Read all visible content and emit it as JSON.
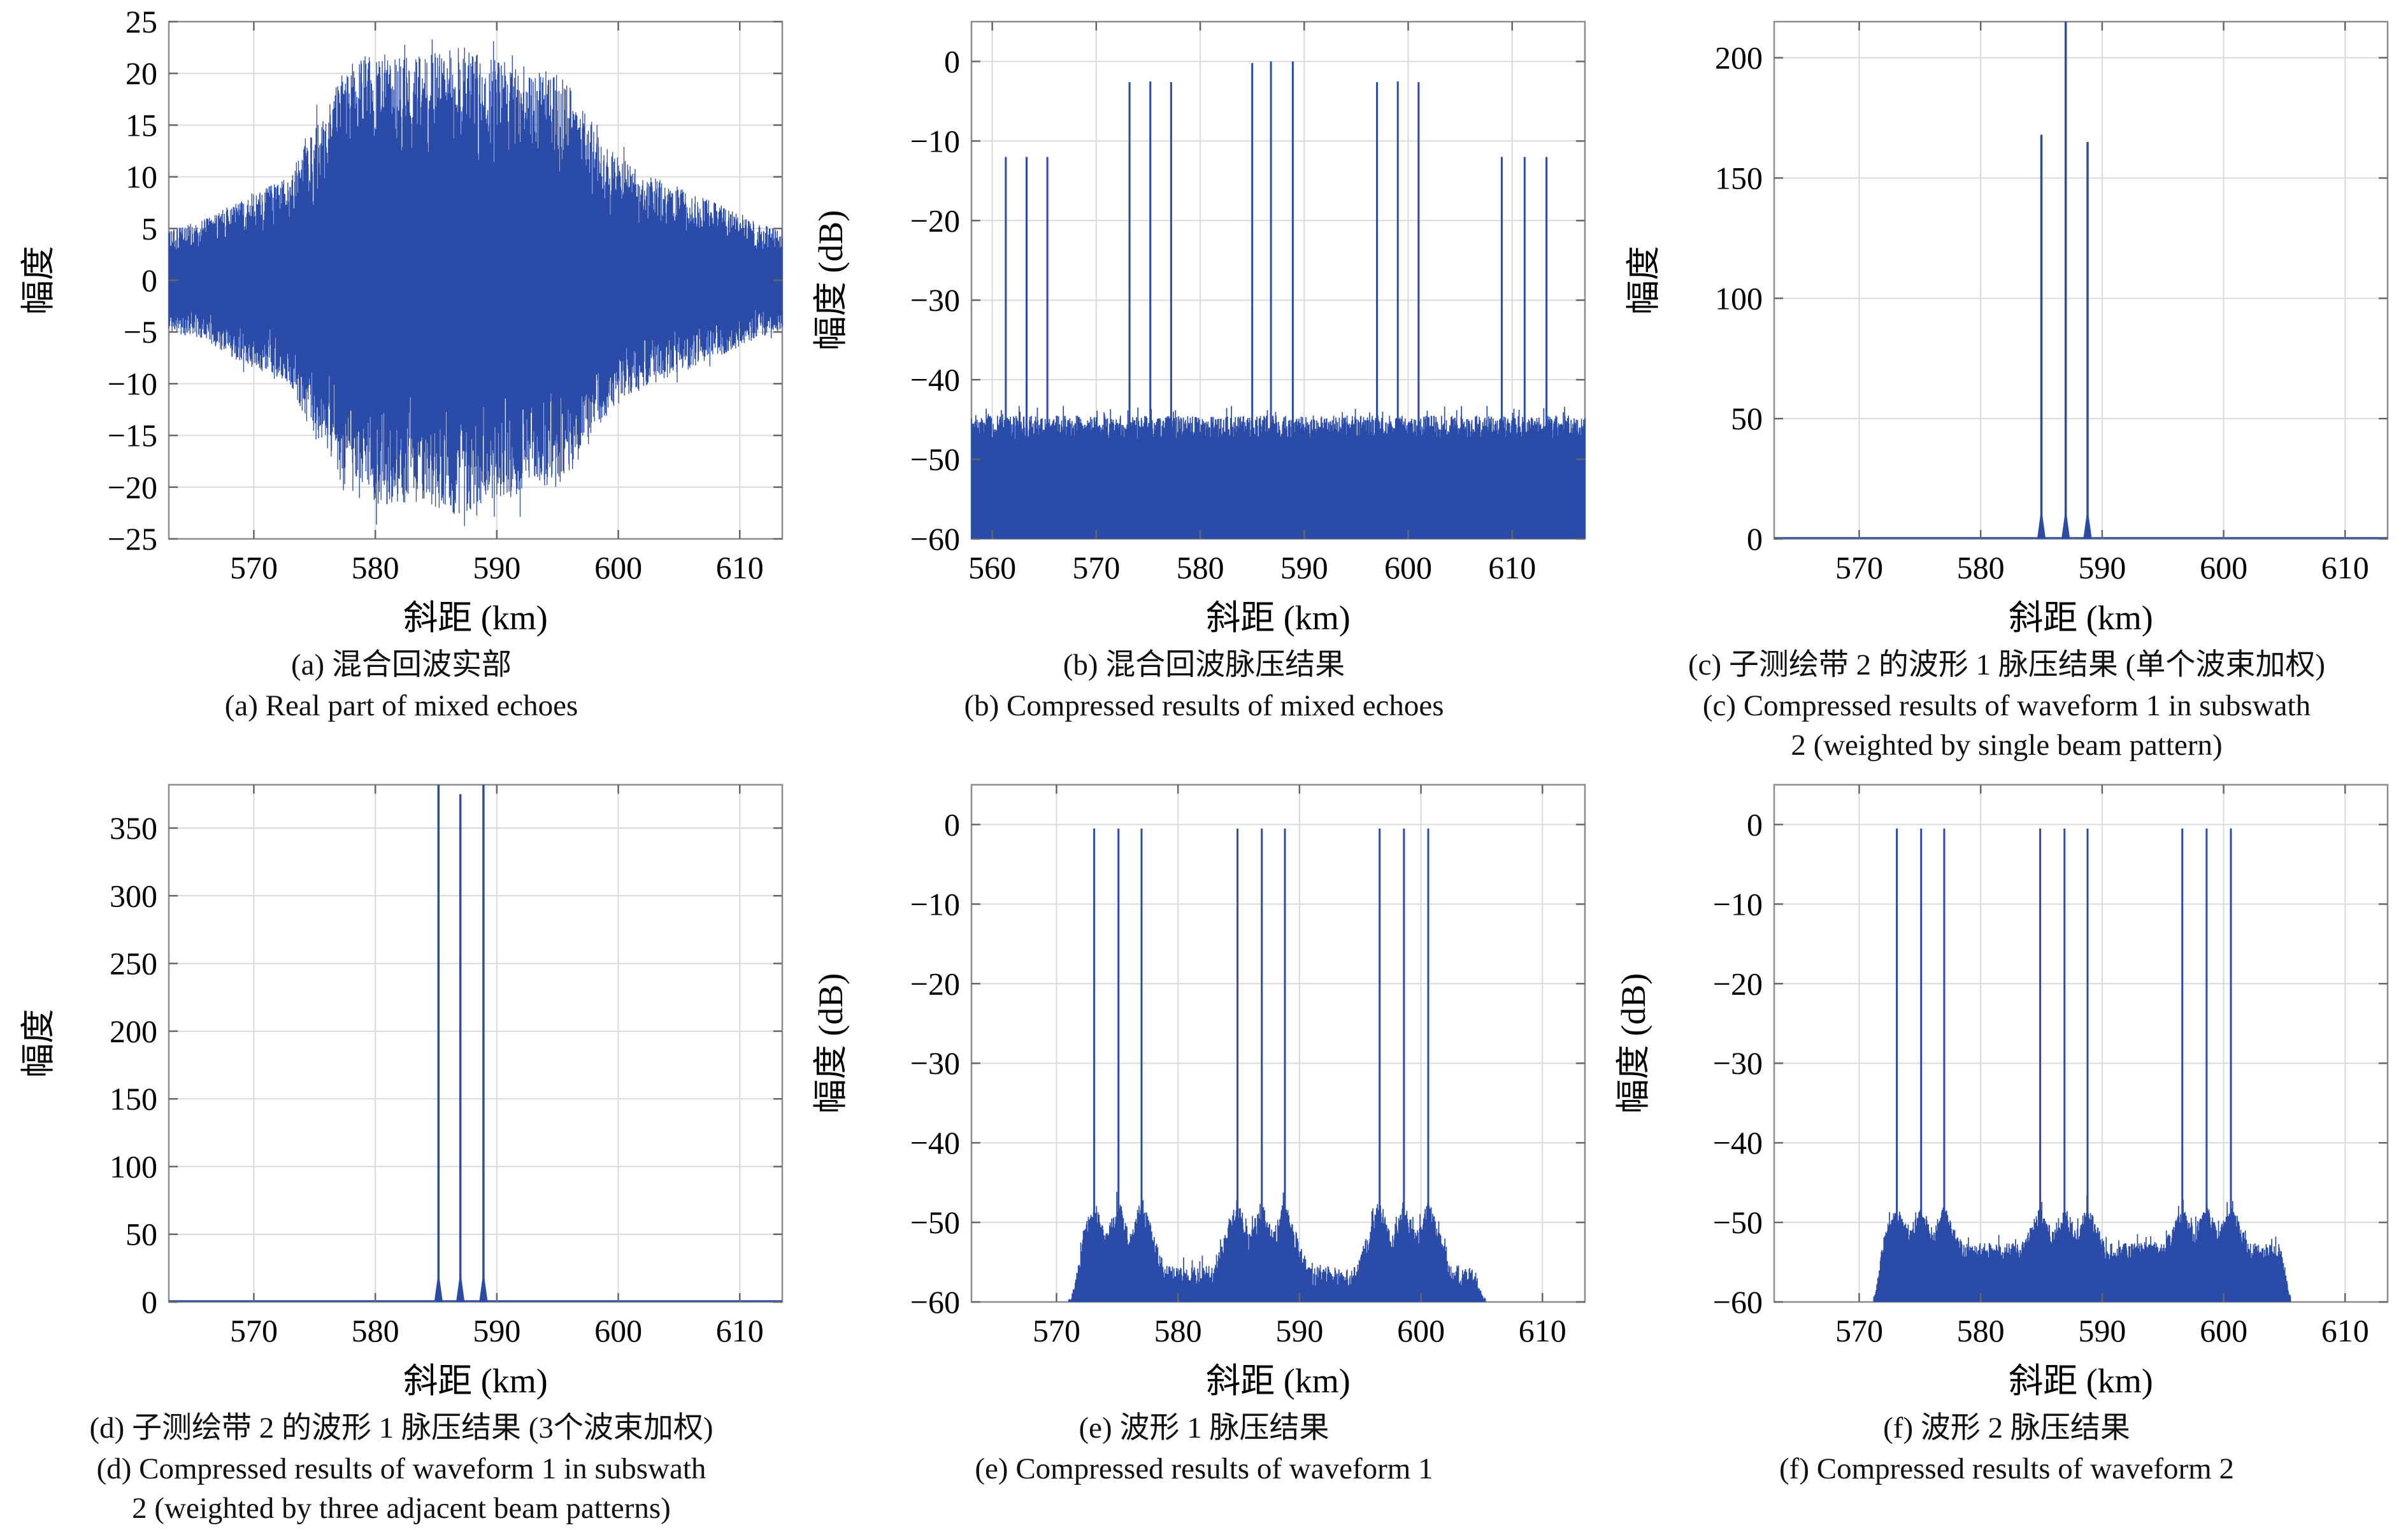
{
  "figure": {
    "line_color": "#2a4ba8",
    "grid_color": "#d9d9d9",
    "axis_color": "#8c8c8c",
    "tick_color": "#666666",
    "text_color": "#000000",
    "background": "#ffffff"
  },
  "chart_data": [
    {
      "id": "a",
      "type": "line",
      "kind": "noise",
      "xlabel": "斜距 (km)",
      "ylabel": "幅度",
      "xlim": [
        563,
        613.5
      ],
      "ylim": [
        -25,
        25
      ],
      "xticks": [
        570,
        580,
        590,
        600,
        610
      ],
      "yticks": [
        -25,
        -20,
        -15,
        -10,
        -5,
        0,
        5,
        10,
        15,
        20,
        25
      ],
      "grid": true,
      "envelope": [
        [
          563,
          5
        ],
        [
          565,
          5.5
        ],
        [
          567,
          6.5
        ],
        [
          569,
          8
        ],
        [
          571,
          9
        ],
        [
          573,
          10
        ],
        [
          574.5,
          14.5
        ],
        [
          576,
          16
        ],
        [
          577,
          20
        ],
        [
          578.5,
          21.5
        ],
        [
          580,
          22
        ],
        [
          583,
          21.5
        ],
        [
          585,
          22
        ],
        [
          587,
          23
        ],
        [
          589,
          21.5
        ],
        [
          591,
          21
        ],
        [
          593,
          20.5
        ],
        [
          595,
          20
        ],
        [
          596.5,
          18
        ],
        [
          598,
          14.5
        ],
        [
          600,
          12
        ],
        [
          602,
          10.5
        ],
        [
          604,
          9.5
        ],
        [
          606,
          8.5
        ],
        [
          608,
          7.5
        ],
        [
          610,
          6.5
        ],
        [
          611.5,
          5.5
        ],
        [
          613.5,
          5
        ]
      ],
      "caption_cn": "(a) 混合回波实部",
      "caption_en": "(a) Real part of mixed echoes"
    },
    {
      "id": "b",
      "type": "line",
      "kind": "dbnoise",
      "xlabel": "斜距 (km)",
      "ylabel": "幅度 (dB)",
      "xlim": [
        558,
        617
      ],
      "ylim": [
        -60,
        5
      ],
      "xticks": [
        560,
        570,
        580,
        590,
        600,
        610
      ],
      "yticks": [
        -60,
        -50,
        -40,
        -30,
        -20,
        -10,
        0
      ],
      "grid": true,
      "noise": {
        "x0": 558,
        "x1": 617,
        "base": -47.5,
        "jitter": 3.0,
        "ped_h": 0,
        "ped_w": 1,
        "taper": 0
      },
      "spike_ped": {
        "w": 0.45,
        "apex": -41.5
      },
      "peaks": [
        [
          561.3,
          -12
        ],
        [
          563.3,
          -12
        ],
        [
          565.3,
          -12
        ],
        [
          573.2,
          -2.6
        ],
        [
          575.2,
          -2.5
        ],
        [
          577.2,
          -2.6
        ],
        [
          585.0,
          -0.2
        ],
        [
          586.8,
          0
        ],
        [
          588.9,
          0
        ],
        [
          597.0,
          -2.6
        ],
        [
          599.0,
          -2.5
        ],
        [
          601.0,
          -2.6
        ],
        [
          609.0,
          -12
        ],
        [
          611.2,
          -12
        ],
        [
          613.3,
          -12
        ]
      ],
      "caption_cn": "(b) 混合回波脉压结果",
      "caption_en": "(b) Compressed results of mixed echoes"
    },
    {
      "id": "c",
      "type": "line",
      "kind": "spikes",
      "xlabel": "斜距 (km)",
      "ylabel": "幅度",
      "xlim": [
        563,
        613.5
      ],
      "ylim": [
        0,
        215
      ],
      "xticks": [
        570,
        580,
        590,
        600,
        610
      ],
      "yticks": [
        0,
        50,
        100,
        150,
        200
      ],
      "grid": true,
      "peaks": [
        [
          585.0,
          168
        ],
        [
          587.0,
          260
        ],
        [
          588.8,
          165
        ]
      ],
      "caption_cn": "(c) 子测绘带 2 的波形 1 脉压结果 (单个波束加权)",
      "caption_en": [
        "(c) Compressed results of waveform 1 in subswath",
        "2 (weighted by single beam pattern)"
      ]
    },
    {
      "id": "d",
      "type": "line",
      "kind": "spikes",
      "xlabel": "斜距 (km)",
      "ylabel": "幅度",
      "xlim": [
        563,
        613.5
      ],
      "ylim": [
        0,
        382
      ],
      "xticks": [
        570,
        580,
        590,
        600,
        610
      ],
      "yticks": [
        0,
        50,
        100,
        150,
        200,
        250,
        300,
        350
      ],
      "grid": true,
      "peaks": [
        [
          585.2,
          430
        ],
        [
          587.0,
          375
        ],
        [
          588.9,
          430
        ]
      ],
      "caption_cn": "(d) 子测绘带 2 的波形 1 脉压结果 (3个波束加权)",
      "caption_en": [
        "(d) Compressed results of waveform 1 in subswath",
        "2 (weighted by three adjacent beam patterns)"
      ]
    },
    {
      "id": "e",
      "type": "line",
      "kind": "dbnoise",
      "xlabel": "斜距 (km)",
      "ylabel": "幅度 (dB)",
      "xlim": [
        563,
        613.5
      ],
      "ylim": [
        -60,
        5
      ],
      "xticks": [
        570,
        580,
        590,
        600,
        610
      ],
      "yticks": [
        -60,
        -50,
        -40,
        -30,
        -20,
        -10,
        0
      ],
      "grid": true,
      "noise": {
        "x0": 571,
        "x1": 605.3,
        "base": -58.2,
        "jitter": 2.8,
        "ped_h": 8.5,
        "ped_w": 1.9,
        "taper": 1.2
      },
      "spike_ped": {
        "w": 0.5,
        "apex": -47.8
      },
      "peaks": [
        [
          573.1,
          -0.5
        ],
        [
          575.1,
          -0.5
        ],
        [
          577.0,
          -0.5
        ],
        [
          584.9,
          -0.5
        ],
        [
          586.9,
          -0.5
        ],
        [
          588.8,
          -0.5
        ],
        [
          596.6,
          -0.5
        ],
        [
          598.6,
          -0.5
        ],
        [
          600.6,
          -0.5
        ]
      ],
      "caption_cn": "(e) 波形 1 脉压结果",
      "caption_en": "(e) Compressed results of waveform 1"
    },
    {
      "id": "f",
      "type": "line",
      "kind": "dbnoise",
      "xlabel": "斜距 (km)",
      "ylabel": "幅度 (dB)",
      "xlim": [
        563,
        613.5
      ],
      "ylim": [
        -60,
        5
      ],
      "xticks": [
        570,
        580,
        590,
        600,
        610
      ],
      "yticks": [
        -60,
        -50,
        -40,
        -30,
        -20,
        -10,
        0
      ],
      "grid": true,
      "noise": {
        "x0": 571.2,
        "x1": 605.5,
        "base": -54.8,
        "jitter": 2.2,
        "ped_h": 4.8,
        "ped_w": 1.5,
        "taper": 0.8
      },
      "spike_ped": {
        "w": 0.5,
        "apex": -47.8
      },
      "peaks": [
        [
          573.1,
          -0.5
        ],
        [
          575.1,
          -0.5
        ],
        [
          577.0,
          -0.5
        ],
        [
          584.9,
          -0.5
        ],
        [
          586.9,
          -0.5
        ],
        [
          588.8,
          -0.5
        ],
        [
          596.6,
          -0.5
        ],
        [
          598.6,
          -0.5
        ],
        [
          600.6,
          -0.5
        ]
      ],
      "caption_cn": "(f) 波形 2 脉压结果",
      "caption_en": "(f) Compressed results of waveform 2"
    }
  ]
}
